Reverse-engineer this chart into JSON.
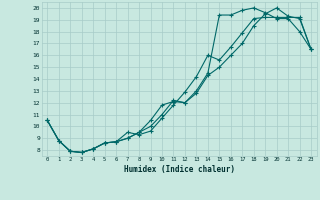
{
  "xlabel": "Humidex (Indice chaleur)",
  "bg_color": "#c8e8e0",
  "grid_color": "#a8ccc8",
  "line_color": "#006868",
  "xlim": [
    -0.5,
    23.5
  ],
  "ylim": [
    7.5,
    20.5
  ],
  "xticks": [
    0,
    1,
    2,
    3,
    4,
    5,
    6,
    7,
    8,
    9,
    10,
    11,
    12,
    13,
    14,
    15,
    16,
    17,
    18,
    19,
    20,
    21,
    22,
    23
  ],
  "yticks": [
    8,
    9,
    10,
    11,
    12,
    13,
    14,
    15,
    16,
    17,
    18,
    19,
    20
  ],
  "line1_x": [
    0,
    1,
    2,
    3,
    4,
    5,
    6,
    7,
    8,
    9,
    10,
    11,
    12,
    13,
    14,
    15,
    16,
    17,
    18,
    19,
    20,
    21,
    22,
    23
  ],
  "line1_y": [
    10.5,
    8.8,
    7.9,
    7.8,
    8.1,
    8.6,
    8.7,
    9.0,
    9.5,
    10.5,
    11.8,
    12.1,
    12.0,
    13.0,
    14.5,
    19.4,
    19.4,
    19.8,
    20.0,
    19.6,
    19.1,
    19.1,
    18.0,
    16.5
  ],
  "line2_x": [
    0,
    1,
    2,
    3,
    4,
    5,
    6,
    7,
    8,
    9,
    10,
    11,
    12,
    13,
    14,
    15,
    16,
    17,
    18,
    19,
    20,
    21,
    22,
    23
  ],
  "line2_y": [
    10.5,
    8.8,
    7.9,
    7.8,
    8.1,
    8.6,
    8.7,
    9.5,
    9.3,
    9.6,
    10.7,
    11.8,
    12.9,
    14.2,
    16.0,
    15.6,
    16.7,
    17.9,
    19.1,
    19.2,
    19.2,
    19.2,
    19.2,
    16.5
  ],
  "line3_x": [
    0,
    1,
    2,
    3,
    4,
    5,
    6,
    7,
    8,
    9,
    10,
    11,
    12,
    13,
    14,
    15,
    16,
    17,
    18,
    19,
    20,
    21,
    22,
    23
  ],
  "line3_y": [
    10.5,
    8.8,
    7.9,
    7.8,
    8.1,
    8.6,
    8.7,
    9.0,
    9.5,
    10.0,
    11.0,
    12.2,
    12.0,
    12.8,
    14.3,
    15.0,
    16.0,
    17.0,
    18.5,
    19.5,
    20.0,
    19.3,
    19.1,
    16.5
  ]
}
